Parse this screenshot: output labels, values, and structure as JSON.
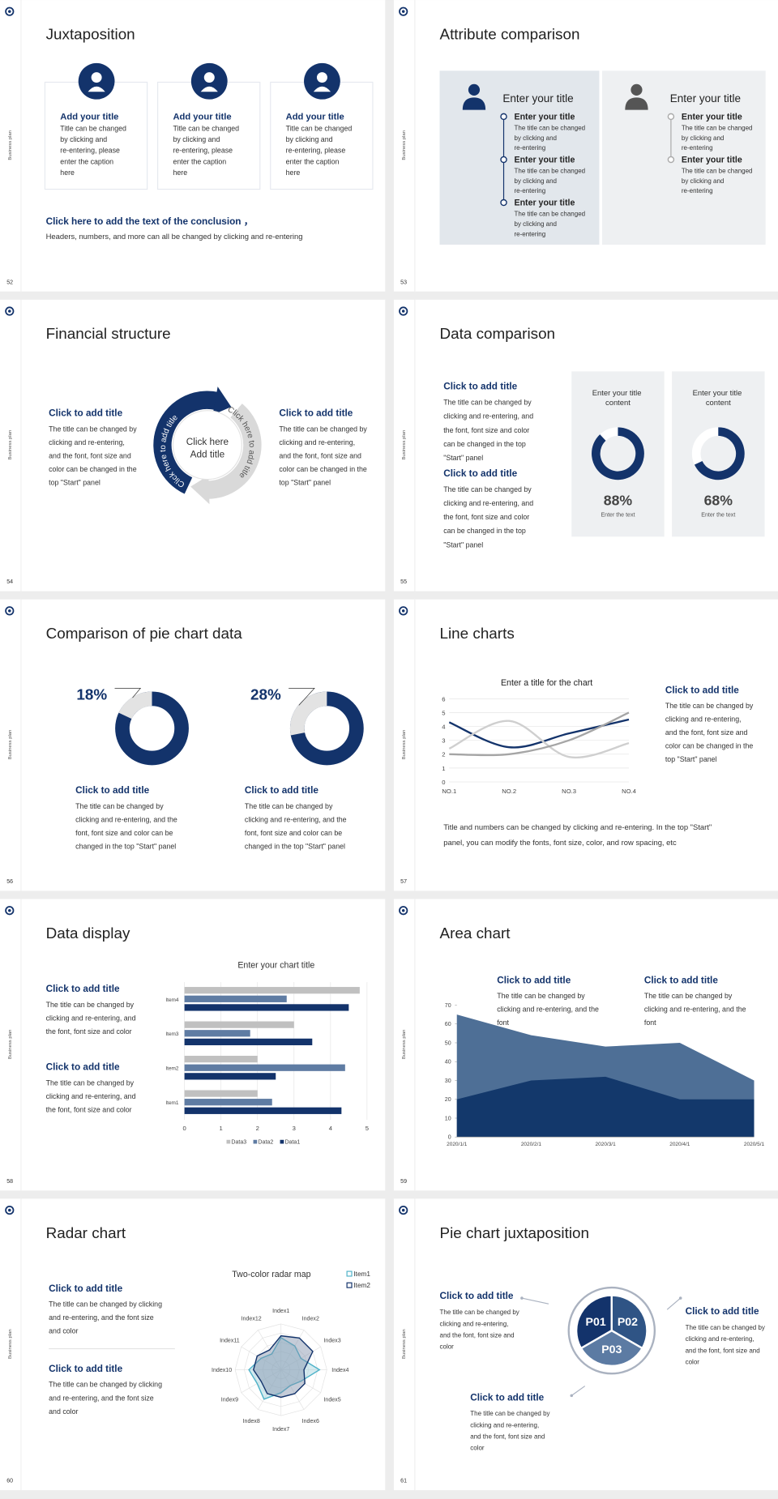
{
  "side_label": "Business plan",
  "slides": [
    {
      "number": "52",
      "title": "Juxtaposition",
      "cards": [
        {
          "title": "Add your title",
          "text": "Title can be changed by clicking and re-entering, please enter the caption here"
        },
        {
          "title": "Add your title",
          "text": "Title can be changed by clicking and re-entering, please enter the caption here"
        },
        {
          "title": "Add your title",
          "text": "Title can be changed by clicking and re-entering, please enter the caption here"
        }
      ],
      "conclusion": "Click here to add the text of the conclusion ，",
      "note": "Headers, numbers, and more can all be changed by clicking and re-entering"
    },
    {
      "number": "53",
      "title": "Attribute comparison",
      "panels": [
        {
          "heading": "Enter your title",
          "items": [
            {
              "title": "Enter your title",
              "text": "The title can be changed by clicking and re-entering"
            },
            {
              "title": "Enter your title",
              "text": "The title can be changed by clicking and re-entering"
            },
            {
              "title": "Enter your title",
              "text": "The title can be changed by clicking and re-entering"
            }
          ]
        },
        {
          "heading": "Enter your title",
          "items": [
            {
              "title": "Enter your title",
              "text": "The title can be changed by clicking and re-entering"
            },
            {
              "title": "Enter your title",
              "text": "The title can be changed by clicking and re-entering"
            }
          ]
        }
      ]
    },
    {
      "number": "54",
      "title": "Financial structure",
      "blocks": [
        {
          "title": "Click to add title",
          "text": "The title can be changed by clicking and re-entering, and the font, font size and color can be changed in the top \"Start\" panel"
        },
        {
          "title": "Click to add title",
          "text": "The title can be changed by clicking and re-entering, and the font, font size and color can be changed in the top \"Start\" panel"
        }
      ],
      "center": [
        "Click here",
        "Add title"
      ],
      "arc_labels": [
        "Click here to add title",
        "Click here to add title"
      ]
    },
    {
      "number": "55",
      "title": "Data comparison",
      "blocks": [
        {
          "title": "Click to add title",
          "text": "The title can be changed by clicking and re-entering, and the font, font size and color can be changed in the top \"Start\" panel"
        },
        {
          "title": "Click to add title",
          "text": "The title can be changed by clicking and re-entering, and the font, font size and color can be changed in the top \"Start\" panel"
        }
      ],
      "chart": {
        "type": "donut",
        "categories": [
          "Enter your title content",
          "Enter your title content"
        ],
        "values": [
          88,
          68
        ],
        "value_labels": [
          "88%",
          "68%"
        ],
        "captions": [
          "Enter the text",
          "Enter the text"
        ],
        "color": "#13336b"
      }
    },
    {
      "number": "56",
      "title": "Comparison of pie chart data",
      "blocks": [
        {
          "title": "Click to add title",
          "text": "The title can be changed by clicking and re-entering, and the font, font size and color can be changed in the top \"Start\" panel"
        },
        {
          "title": "Click to add title",
          "text": "The title can be changed by clicking and re-entering, and the font, font size and color can be changed in the top \"Start\" panel"
        }
      ],
      "chart": {
        "type": "donut",
        "values": [
          18,
          28
        ],
        "value_labels": [
          "18%",
          "28%"
        ],
        "color": "#e3e3e3"
      }
    },
    {
      "number": "57",
      "title": "Line charts",
      "chart": {
        "type": "line",
        "title": "Enter a title for the chart",
        "categories": [
          "NO.1",
          "NO.2",
          "NO.3",
          "NO.4"
        ],
        "series": [
          {
            "color": "#13336b",
            "values": [
              4.3,
              2.5,
              3.5,
              4.5
            ]
          },
          {
            "color": "#cfcfcf",
            "values": [
              2.4,
              4.4,
              1.8,
              2.8
            ]
          },
          {
            "color": "#a5a5a5",
            "values": [
              2,
              2,
              3,
              5
            ]
          }
        ],
        "ylim": [
          0,
          6
        ],
        "yticks": [
          0,
          1,
          2,
          3,
          4,
          5,
          6
        ],
        "grid": true
      },
      "block": {
        "title": "Click to add title",
        "text": "The title can be changed by clicking and re-entering, and the font, font size and color can be changed in the top \"Start\" panel"
      },
      "note": "Title and numbers can be changed by clicking and re-entering. In the top \"Start\" panel, you can modify the fonts, font size, color, and row spacing, etc"
    },
    {
      "number": "58",
      "title": "Data display",
      "blocks": [
        {
          "title": "Click to add title",
          "text": "The title can be changed by clicking and re-entering, and the font, font size and color"
        },
        {
          "title": "Click to add title",
          "text": "The title can be changed by clicking and re-entering, and the font, font size and color"
        }
      ],
      "chart": {
        "type": "hbar",
        "title": "Enter your chart title",
        "categories": [
          "Item1",
          "Item2",
          "Item3",
          "Item4"
        ],
        "series": [
          {
            "name": "Data1",
            "color": "#13336b",
            "values": [
              4.3,
              2.5,
              3.5,
              4.5
            ]
          },
          {
            "name": "Data2",
            "color": "#5f7ca3",
            "values": [
              2.4,
              4.4,
              1.8,
              2.8
            ]
          },
          {
            "name": "Data3",
            "color": "#c0c0c0",
            "values": [
              2,
              2,
              3,
              4.8
            ]
          }
        ],
        "xlim": [
          0,
          5
        ],
        "xticks": [
          0,
          1,
          2,
          3,
          4,
          5
        ],
        "grid": true
      }
    },
    {
      "number": "59",
      "title": "Area chart",
      "blocks": [
        {
          "title": "Click to add title",
          "text": "The title can be changed by clicking and re-entering, and the font"
        },
        {
          "title": "Click to add title",
          "text": "The title can be changed by clicking and re-entering, and the font"
        }
      ],
      "chart": {
        "type": "area",
        "categories": [
          "2020/1/1",
          "2020/2/1",
          "2020/3/1",
          "2020/4/1",
          "2020/5/1"
        ],
        "series": [
          {
            "color": "#4e6f96",
            "values": [
              65,
              54,
              48,
              50,
              30
            ]
          },
          {
            "color": "#13386b",
            "values": [
              20,
              30,
              32,
              20,
              20
            ]
          }
        ],
        "ylim": [
          0,
          70
        ],
        "yticks": [
          0,
          10,
          20,
          30,
          40,
          50,
          60,
          70
        ]
      }
    },
    {
      "number": "60",
      "title": "Radar chart",
      "blocks": [
        {
          "title": "Click to add title",
          "text": "The title can be changed by clicking and re-entering, and the font size and color"
        },
        {
          "title": "Click to add title",
          "text": "The title can be changed by clicking and re-entering, and the font size and color"
        }
      ],
      "chart": {
        "type": "radar",
        "title": "Two-color radar map",
        "categories": [
          "Index1",
          "Index2",
          "Index3",
          "Index4",
          "Index5",
          "Index6",
          "Index7",
          "Index8",
          "Index9",
          "Index10",
          "Index11",
          "Index12"
        ],
        "series": [
          {
            "name": "Item1",
            "color": "#4fb3c9",
            "values": [
              3.5,
              3.0,
              2.5,
              4.2,
              2.5,
              2.0,
              2.5,
              3.7,
              3.0,
              3.5,
              2.5,
              2.0
            ]
          },
          {
            "name": "Item2",
            "color": "#13336b",
            "values": [
              3.7,
              4.0,
              4.0,
              2.5,
              3.0,
              3.0,
              3.0,
              3.0,
              2.5,
              3.0,
              3.0,
              2.5
            ]
          }
        ],
        "rlim": [
          0,
          5
        ],
        "rticks": [
          1,
          2,
          3,
          4,
          5
        ]
      }
    },
    {
      "number": "61",
      "title": "Pie chart juxtaposition",
      "segments": [
        "P01",
        "P02",
        "P03"
      ],
      "blocks": [
        {
          "title": "Click to add title",
          "text": "The title can be changed by clicking and re-entering, and the font, font size and color"
        },
        {
          "title": "Click to add title",
          "text": "The title can be changed by clicking and re-entering, and the font, font size and color"
        },
        {
          "title": "Click to add title",
          "text": "The title can be changed by clicking and re-entering, and the font, font size and color"
        }
      ]
    }
  ]
}
